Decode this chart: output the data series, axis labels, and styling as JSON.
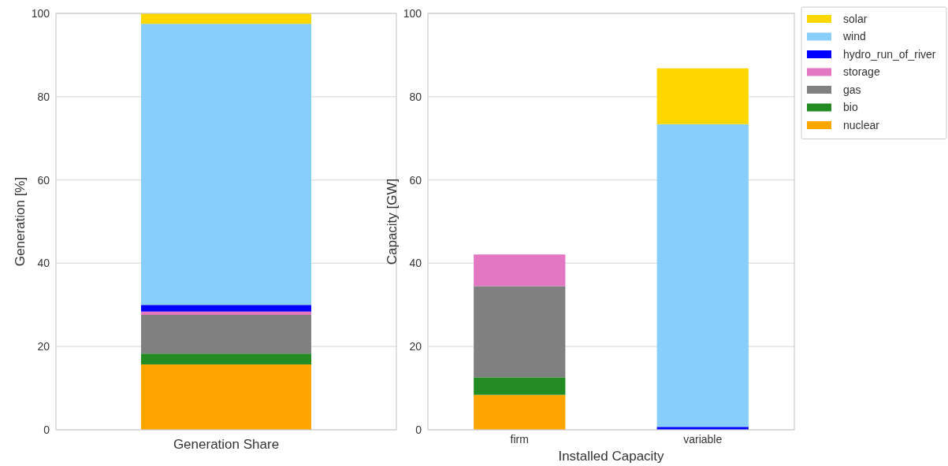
{
  "chart_data": [
    {
      "type": "bar",
      "stacked": true,
      "categories": [
        "Generation Share"
      ],
      "ylabel": "Generation [%]",
      "ylim": [
        0,
        100
      ],
      "yticks": [
        0,
        20,
        40,
        60,
        80,
        100
      ],
      "grid": "y",
      "legend": false,
      "series": [
        {
          "color": "#ffa500",
          "values": [
            15.7
          ]
        },
        {
          "color": "#228b22",
          "values": [
            2.6
          ]
        },
        {
          "color": "#808080",
          "values": [
            9.3
          ]
        },
        {
          "color": "#e377c2",
          "values": [
            0.8
          ]
        },
        {
          "color": "#0000ff",
          "values": [
            1.6
          ]
        },
        {
          "color": "#87cefa",
          "values": [
            67.5
          ]
        },
        {
          "color": "#ffd700",
          "values": [
            2.5
          ]
        }
      ]
    },
    {
      "type": "bar",
      "stacked": true,
      "categories": [
        "firm",
        "variable"
      ],
      "xlabel": "Installed Capacity",
      "ylabel": "Capacity [GW]",
      "ylim": [
        0,
        100
      ],
      "yticks": [
        0,
        20,
        40,
        60,
        80,
        100
      ],
      "grid": "y",
      "legend": "top right",
      "series": [
        {
          "name": "nuclear",
          "color": "#ffa500",
          "values": [
            8.4,
            0
          ]
        },
        {
          "name": "bio",
          "color": "#228b22",
          "values": [
            4.2,
            0
          ]
        },
        {
          "name": "gas",
          "color": "#808080",
          "values": [
            21.9,
            0
          ]
        },
        {
          "name": "storage",
          "color": "#e377c2",
          "values": [
            7.6,
            0
          ]
        },
        {
          "name": "hydro_run_of_river",
          "color": "#0000ff",
          "values": [
            0,
            0.7
          ]
        },
        {
          "name": "wind",
          "color": "#87cefa",
          "values": [
            0,
            72.7
          ]
        },
        {
          "name": "solar",
          "color": "#ffd700",
          "values": [
            0,
            13.4
          ]
        }
      ]
    }
  ]
}
